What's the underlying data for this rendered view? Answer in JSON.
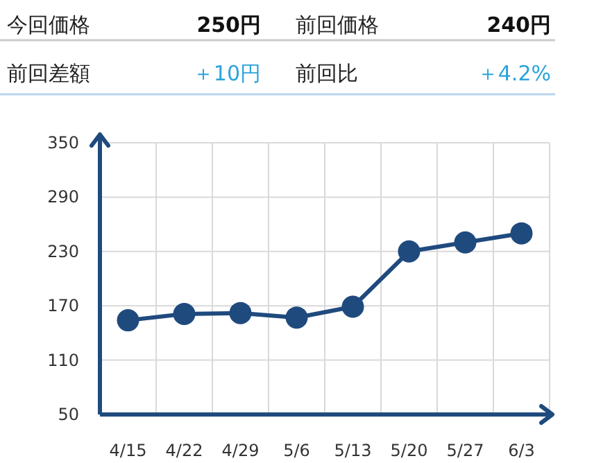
{
  "chart_data": [
    {
      "type": "other",
      "annotations": [
        "今回価格",
        "250円",
        "前回価格",
        "240円",
        "前回差額",
        "＋10円",
        "前回比",
        "＋4.2%"
      ]
    },
    {
      "type": "line",
      "categories": [
        "4/15",
        "4/22",
        "4/29",
        "5/6",
        "5/13",
        "5/20",
        "5/27",
        "6/3"
      ],
      "series": [
        {
          "color": "#1f4a7e",
          "values": [
            154,
            161,
            162,
            157,
            169,
            230,
            240,
            250
          ]
        }
      ],
      "ylim": [
        50,
        350
      ],
      "yticks": [
        50,
        110,
        170,
        230,
        290,
        350
      ],
      "grid": true,
      "marker": "circle",
      "line_style": "solid"
    }
  ]
}
